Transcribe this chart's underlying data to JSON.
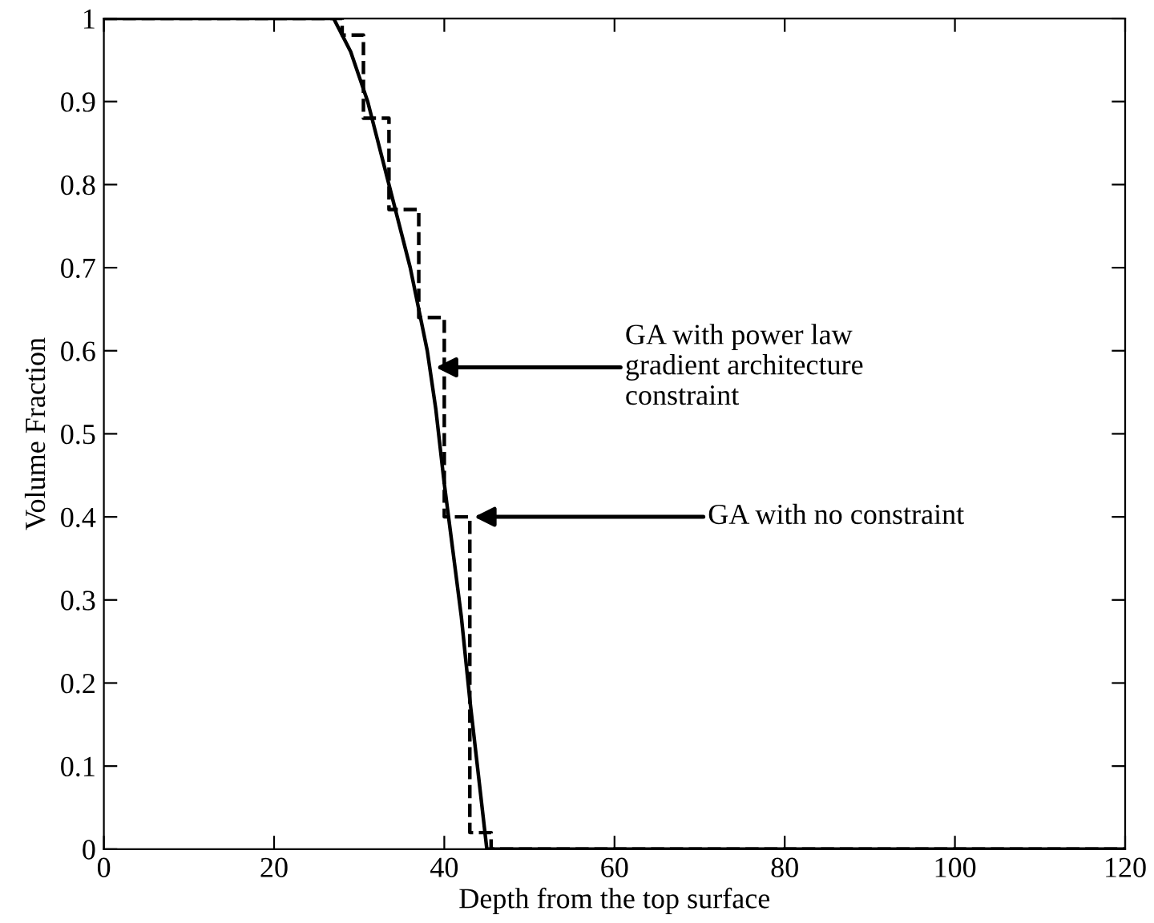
{
  "chart_data": {
    "type": "line",
    "xlabel": "Depth from the top surface",
    "ylabel": "Volume Fraction",
    "series": [
      {
        "color": "#000000",
        "line_style": "solid",
        "x": [
          0,
          27,
          28,
          29,
          30,
          31,
          32,
          33,
          34,
          35,
          36,
          37,
          38,
          39,
          40,
          41,
          42,
          43,
          44,
          45,
          120
        ],
        "values": [
          1,
          1,
          0.98,
          0.96,
          0.93,
          0.9,
          0.86,
          0.82,
          0.78,
          0.74,
          0.7,
          0.65,
          0.6,
          0.53,
          0.44,
          0.36,
          0.28,
          0.18,
          0.09,
          0,
          0
        ]
      },
      {
        "type": "step",
        "color": "#000000",
        "line_style": "dashed",
        "x": [
          0,
          27,
          28,
          30.5,
          33.5,
          37,
          40,
          43,
          45.5,
          120
        ],
        "values": [
          1,
          1,
          0.98,
          0.88,
          0.77,
          0.64,
          0.4,
          0.02,
          0,
          0
        ]
      }
    ],
    "annotations": [
      {
        "text": "GA with power law\ngradient architecture\nconstraint",
        "x": 39,
        "y": 0.58
      },
      {
        "text": "GA with no constraint",
        "x": 43.5,
        "y": 0.4
      }
    ],
    "xlim": [
      0,
      120
    ],
    "ylim": [
      0,
      1
    ],
    "xticks": [
      0,
      20,
      40,
      60,
      80,
      100,
      120
    ],
    "yticks": [
      0,
      0.1,
      0.2,
      0.3,
      0.4,
      0.5,
      0.6,
      0.7,
      0.8,
      0.9,
      1
    ],
    "grid": false,
    "legend": false
  }
}
